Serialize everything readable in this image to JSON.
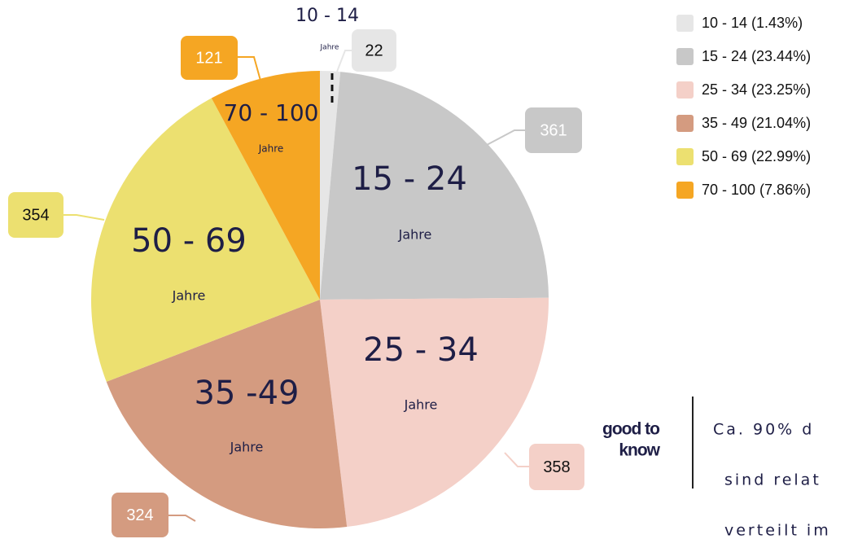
{
  "chart_data": {
    "type": "pie",
    "categories": [
      "10 - 14",
      "15 - 24",
      "25 - 34",
      "35 -49",
      "50 - 69",
      "70 - 100"
    ],
    "values": [
      22,
      361,
      358,
      324,
      354,
      121
    ],
    "colors": [
      "#e6e6e6",
      "#c8c8c8",
      "#f4d0c8",
      "#d49b80",
      "#ece070",
      "#f5a623"
    ],
    "slice_unit": "Jahre",
    "legend": [
      "10 - 14 (1.43%)",
      "15 - 24 (23.44%)",
      "25 - 34 (23.25%)",
      "35 - 49 (21.04%)",
      "50 - 69 (22.99%)",
      "70 - 100 (7.86%)"
    ]
  },
  "note": {
    "heading": "good to know",
    "lines": [
      "Ca. 90% d",
      "sind relat",
      "verteilt im"
    ]
  }
}
